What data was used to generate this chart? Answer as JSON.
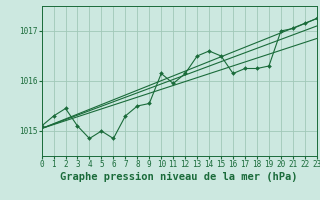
{
  "bg_color": "#cce8e0",
  "grid_color": "#a0c8b8",
  "line_color": "#1a6b3a",
  "title": "Graphe pression niveau de la mer (hPa)",
  "xlim": [
    0,
    23
  ],
  "ylim": [
    1014.5,
    1017.5
  ],
  "yticks": [
    1015,
    1016,
    1017
  ],
  "xticks": [
    0,
    1,
    2,
    3,
    4,
    5,
    6,
    7,
    8,
    9,
    10,
    11,
    12,
    13,
    14,
    15,
    16,
    17,
    18,
    19,
    20,
    21,
    22,
    23
  ],
  "series1": {
    "x": [
      0,
      1,
      2,
      3,
      4,
      5,
      6,
      7,
      8,
      9,
      10,
      11,
      12,
      13,
      14,
      15,
      16,
      17,
      18,
      19,
      20,
      21,
      22,
      23
    ],
    "y": [
      1015.1,
      1015.3,
      1015.45,
      1015.1,
      1014.85,
      1015.0,
      1014.85,
      1015.3,
      1015.5,
      1015.55,
      1016.15,
      1015.95,
      1016.15,
      1016.5,
      1016.6,
      1016.5,
      1016.15,
      1016.25,
      1016.25,
      1016.3,
      1017.0,
      1017.05,
      1017.15,
      1017.25
    ]
  },
  "line1": {
    "x": [
      0,
      23
    ],
    "y": [
      1015.05,
      1017.25
    ]
  },
  "line2": {
    "x": [
      0,
      23
    ],
    "y": [
      1015.05,
      1017.1
    ]
  },
  "line3": {
    "x": [
      0,
      23
    ],
    "y": [
      1015.05,
      1016.85
    ]
  },
  "title_fontsize": 7.5,
  "tick_fontsize": 5.5
}
